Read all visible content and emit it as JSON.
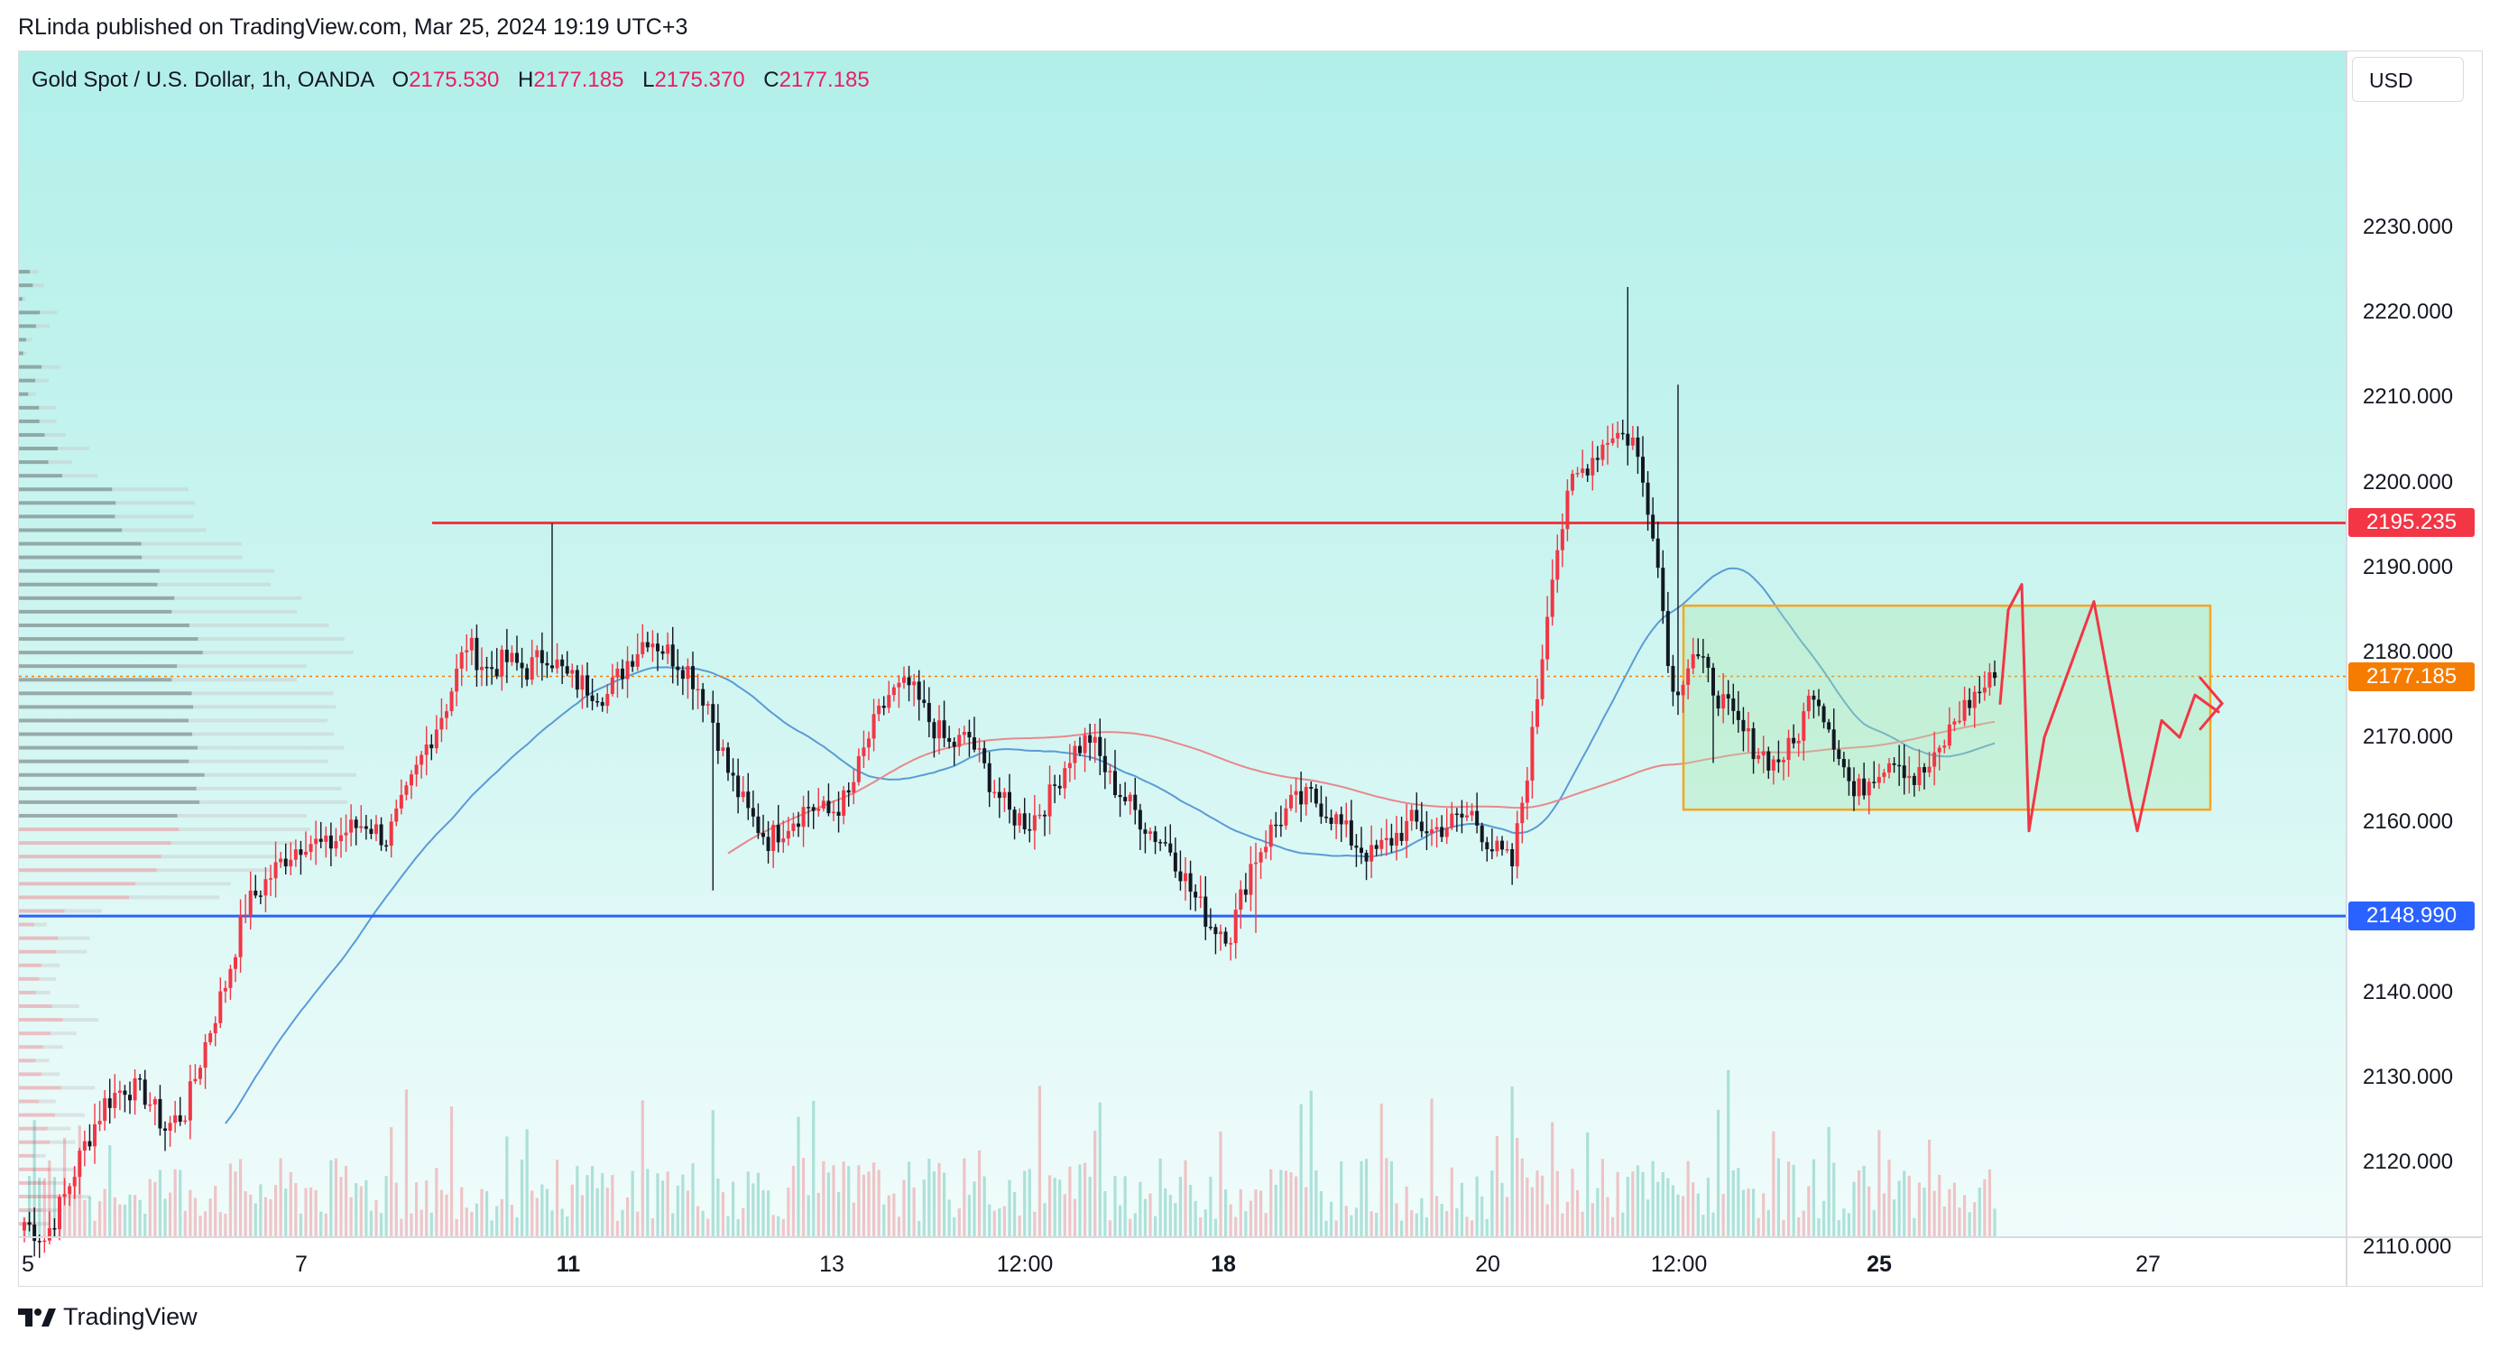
{
  "header": {
    "text": "RLinda published on TradingView.com, Mar 25, 2024 19:19 UTC+3"
  },
  "legend": {
    "symbol": "Gold Spot / U.S. Dollar, 1h, OANDA",
    "o_label": "O",
    "o_value": "2175.530",
    "h_label": "H",
    "h_value": "2177.185",
    "l_label": "L",
    "l_value": "2175.370",
    "c_label": "C",
    "c_value": "2177.185"
  },
  "currency": "USD",
  "branding": "TradingView",
  "colors": {
    "up": "#f23645",
    "down": "#131722",
    "resistance": "#f23645",
    "support": "#2962ff",
    "current": "#f57c00",
    "box_border": "#f5a623",
    "sma_fast": "#5b9bd5",
    "sma_slow": "#e8888c"
  },
  "chart_data": {
    "type": "candlestick",
    "title": "Gold Spot / U.S. Dollar, 1h, OANDA",
    "ylim": [
      2101,
      2240
    ],
    "y_ticks": [
      "2230.000",
      "2220.000",
      "2210.000",
      "2200.000",
      "2190.000",
      "2180.000",
      "2170.000",
      "2160.000",
      "2140.000",
      "2130.000",
      "2120.000",
      "2110.000"
    ],
    "x_ticks": [
      {
        "label": "5",
        "bold": false
      },
      {
        "label": "7",
        "bold": false
      },
      {
        "label": "11",
        "bold": true
      },
      {
        "label": "13",
        "bold": false
      },
      {
        "label": "12:00",
        "bold": false
      },
      {
        "label": "18",
        "bold": true
      },
      {
        "label": "20",
        "bold": false
      },
      {
        "label": "12:00",
        "bold": false
      },
      {
        "label": "25",
        "bold": true
      },
      {
        "label": "27",
        "bold": false
      }
    ],
    "price_labels": [
      {
        "name": "resistance",
        "value": "2195.235",
        "color": "#f23645"
      },
      {
        "name": "current",
        "value": "2177.185",
        "color": "#f57c00"
      },
      {
        "name": "support",
        "value": "2148.990",
        "color": "#2962ff"
      }
    ],
    "horizontal_lines": [
      {
        "name": "resistance",
        "price": 2195.235
      },
      {
        "name": "support",
        "price": 2148.99
      }
    ],
    "current_price": 2177.185,
    "range_box": {
      "price_top": 2185.5,
      "price_bottom": 2161.5
    },
    "close_path": [
      2113,
      2111,
      2116,
      2122,
      2127,
      2129,
      2128,
      2124,
      2126,
      2134,
      2141,
      2150,
      2153,
      2156,
      2158,
      2157,
      2159,
      2160,
      2158,
      2163,
      2169,
      2174,
      2181,
      2178,
      2179,
      2178,
      2180,
      2177,
      2176,
      2175,
      2179,
      2182,
      2180,
      2178,
      2174,
      2166,
      2161,
      2158,
      2160,
      2162,
      2161,
      2163,
      2170,
      2175,
      2176,
      2172,
      2169,
      2170,
      2165,
      2161,
      2160,
      2163,
      2168,
      2170,
      2165,
      2162,
      2159,
      2157,
      2152,
      2148,
      2147,
      2155,
      2159,
      2162,
      2163,
      2161,
      2158,
      2156,
      2158,
      2160,
      2159,
      2160,
      2161,
      2157,
      2155,
      2170,
      2190,
      2200,
      2203,
      2206,
      2205,
      2195,
      2175,
      2180,
      2176,
      2172,
      2169,
      2167,
      2169,
      2176,
      2170,
      2163,
      2166,
      2168,
      2165,
      2167,
      2172,
      2175,
      2177
    ],
    "volume_profile": "horizontal volume-by-price histogram on left edge",
    "moving_averages": [
      "fast SMA (blue)",
      "slow SMA (red)"
    ]
  }
}
